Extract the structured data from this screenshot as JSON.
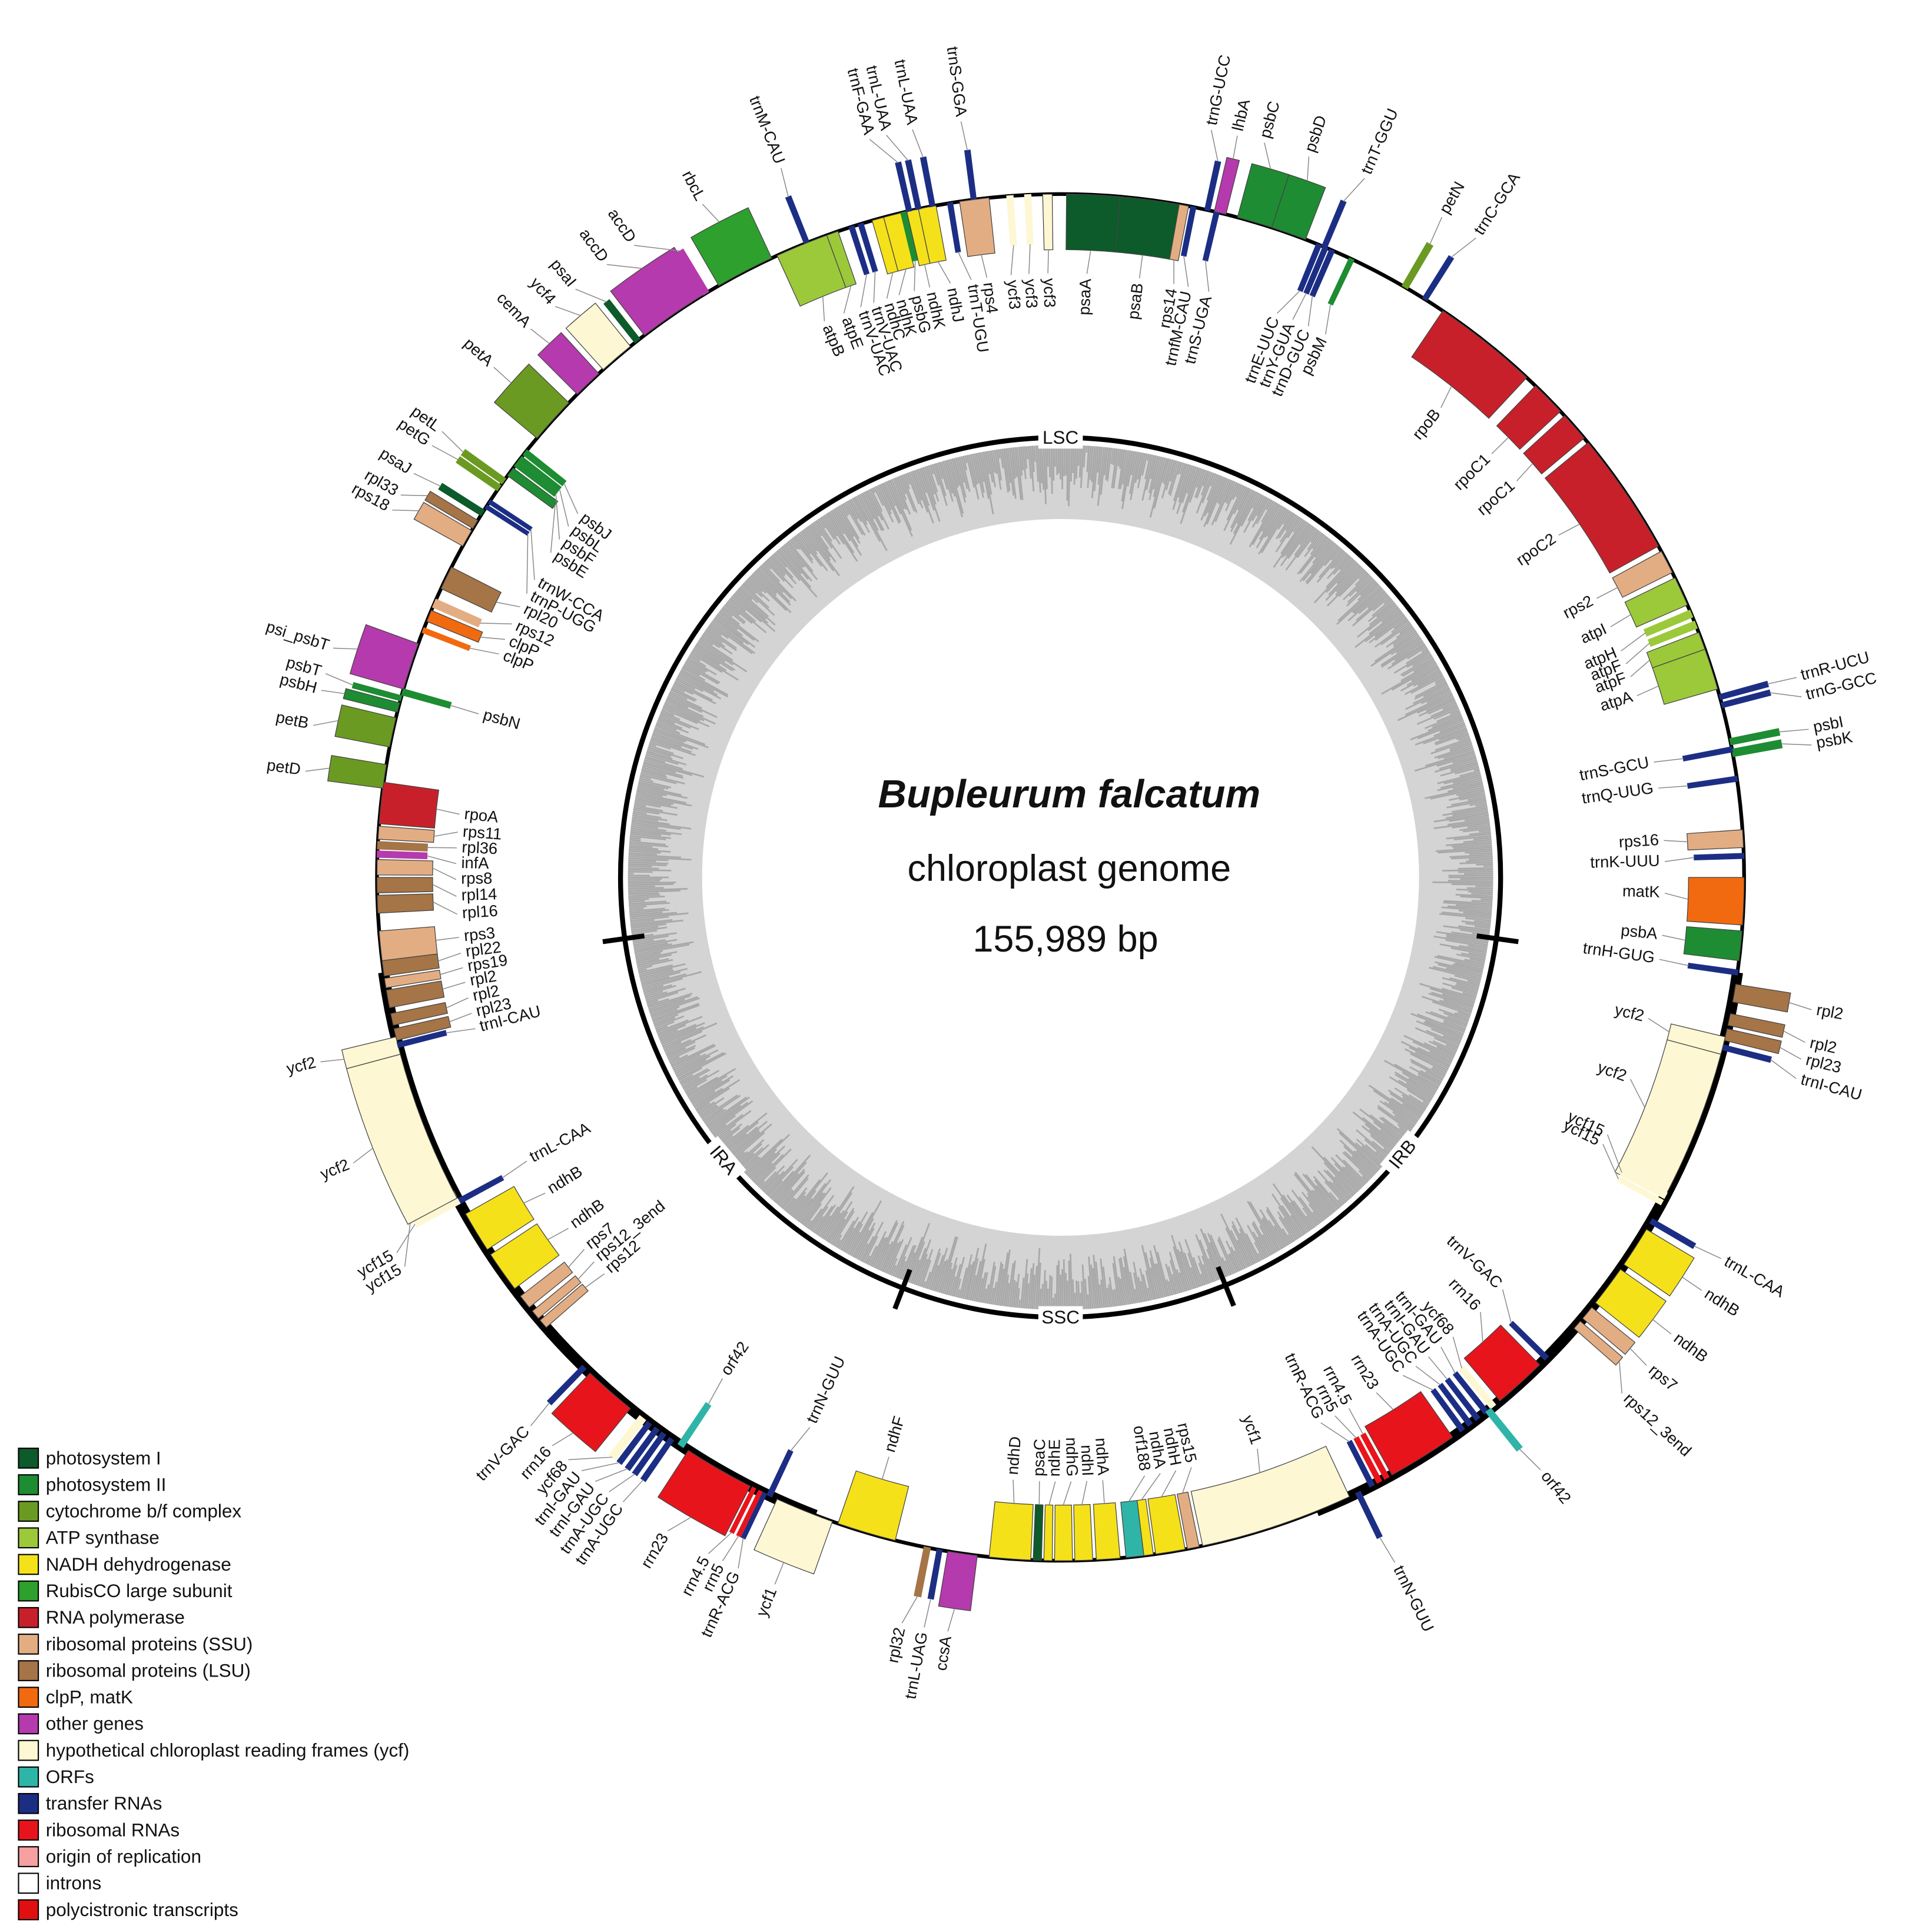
{
  "title": "Bupleurum falcatum",
  "subtitle": "chloroplast genome",
  "size": "155,989 bp",
  "regions": [
    "LSC",
    "SSC",
    "IRA",
    "IRB"
  ],
  "genes": [
    {
      "label": "psaA",
      "color": "#0d5a2a"
    },
    {
      "label": "psaB",
      "color": "#0d5a2a"
    },
    {
      "label": "rps14",
      "color": "#e3ad83"
    },
    {
      "label": "trnfM-CAU",
      "color": "#1c2e84"
    },
    {
      "label": "trnS-UGA",
      "color": "#1c2e84"
    },
    {
      "label": "trnG-UCC",
      "color": "#1c2e84"
    },
    {
      "label": "lhbA",
      "color": "#b53aad"
    },
    {
      "label": "psbC",
      "color": "#1e8c32"
    },
    {
      "label": "psbD",
      "color": "#1e8c32"
    },
    {
      "label": "trnT-GGU",
      "color": "#1c2e84"
    },
    {
      "label": "trnE-UUC",
      "color": "#1c2e84"
    },
    {
      "label": "trnY-GUA",
      "color": "#1c2e84"
    },
    {
      "label": "trnD-GUC",
      "color": "#1c2e84"
    },
    {
      "label": "psbM",
      "color": "#1e8c32"
    },
    {
      "label": "petN",
      "color": "#6b9a23"
    },
    {
      "label": "trnC-GCA",
      "color": "#1c2e84"
    },
    {
      "label": "rpoB",
      "color": "#c8202a"
    },
    {
      "label": "rpoC1",
      "color": "#c8202a"
    },
    {
      "label": "rpoC1",
      "color": "#c8202a"
    },
    {
      "label": "rpoC2",
      "color": "#c8202a"
    },
    {
      "label": "rps2",
      "color": "#e3ad83"
    },
    {
      "label": "atpI",
      "color": "#9cc93a"
    },
    {
      "label": "atpH",
      "color": "#9cc93a"
    },
    {
      "label": "atpF",
      "color": "#9cc93a"
    },
    {
      "label": "atpF",
      "color": "#9cc93a"
    },
    {
      "label": "atpA",
      "color": "#9cc93a"
    },
    {
      "label": "trnR-UCU",
      "color": "#1c2e84"
    },
    {
      "label": "trnG-GCC",
      "color": "#1c2e84"
    },
    {
      "label": "psbI",
      "color": "#1e8c32"
    },
    {
      "label": "psbK",
      "color": "#1e8c32"
    },
    {
      "label": "trnS-GCU",
      "color": "#1c2e84"
    },
    {
      "label": "trnQ-UUG",
      "color": "#1c2e84"
    },
    {
      "label": "rps16",
      "color": "#e3ad83"
    },
    {
      "label": "trnK-UUU",
      "color": "#1c2e84"
    },
    {
      "label": "matK",
      "color": "#f26a0f"
    },
    {
      "label": "psbA",
      "color": "#1e8c32"
    },
    {
      "label": "trnH-GUG",
      "color": "#1c2e84"
    },
    {
      "label": "rpl2",
      "color": "#a57447"
    },
    {
      "label": "rpl2",
      "color": "#a57447"
    },
    {
      "label": "rpl23",
      "color": "#a57447"
    },
    {
      "label": "trnI-CAU",
      "color": "#1c2e84"
    },
    {
      "label": "ycf2",
      "color": "#fdf7d3"
    },
    {
      "label": "ycf2",
      "color": "#fdf7d3"
    },
    {
      "label": "ycf15",
      "color": "#fdf7d3"
    },
    {
      "label": "ycf15",
      "color": "#fdf7d3"
    },
    {
      "label": "trnL-CAA",
      "color": "#1c2e84"
    },
    {
      "label": "ndhB",
      "color": "#f5e11a"
    },
    {
      "label": "ndhB",
      "color": "#f5e11a"
    },
    {
      "label": "rps7",
      "color": "#e3ad83"
    },
    {
      "label": "rps12_3end",
      "color": "#e3ad83"
    },
    {
      "label": "trnV-GAC",
      "color": "#1c2e84"
    },
    {
      "label": "rrn16",
      "color": "#e8141c"
    },
    {
      "label": "ycf68",
      "color": "#fdf7d3"
    },
    {
      "label": "trnI-GAU",
      "color": "#1c2e84"
    },
    {
      "label": "trnI-GAU",
      "color": "#1c2e84"
    },
    {
      "label": "trnA-UGC",
      "color": "#1c2e84"
    },
    {
      "label": "trnA-UGC",
      "color": "#1c2e84"
    },
    {
      "label": "orf42",
      "color": "#2fb5a8"
    },
    {
      "label": "rrn23",
      "color": "#e8141c"
    },
    {
      "label": "rrn4.5",
      "color": "#e8141c"
    },
    {
      "label": "rrn5",
      "color": "#e8141c"
    },
    {
      "label": "trnR-ACG",
      "color": "#1c2e84"
    },
    {
      "label": "trnN-GUU",
      "color": "#1c2e84"
    },
    {
      "label": "ycf1",
      "color": "#fdf7d3"
    },
    {
      "label": "rps15",
      "color": "#e3ad83"
    },
    {
      "label": "ndhH",
      "color": "#f5e11a"
    },
    {
      "label": "ndhA",
      "color": "#f5e11a"
    },
    {
      "label": "orf188",
      "color": "#2fb5a8"
    },
    {
      "label": "ndhA",
      "color": "#f5e11a"
    },
    {
      "label": "ndhI",
      "color": "#f5e11a"
    },
    {
      "label": "ndhG",
      "color": "#f5e11a"
    },
    {
      "label": "ndhE",
      "color": "#f5e11a"
    },
    {
      "label": "psaC",
      "color": "#0d5a2a"
    },
    {
      "label": "ndhD",
      "color": "#f5e11a"
    },
    {
      "label": "ccsA",
      "color": "#b53aad"
    },
    {
      "label": "trnL-UAG",
      "color": "#1c2e84"
    },
    {
      "label": "rpl32",
      "color": "#a57447"
    },
    {
      "label": "ndhF",
      "color": "#f5e11a"
    },
    {
      "label": "ycf1",
      "color": "#fdf7d3"
    },
    {
      "label": "trnN-GUU",
      "color": "#1c2e84"
    },
    {
      "label": "rrn23",
      "color": "#e8141c"
    },
    {
      "label": "rrn4.5",
      "color": "#e8141c"
    },
    {
      "label": "rrn5",
      "color": "#e8141c"
    },
    {
      "label": "trnR-ACG",
      "color": "#1c2e84"
    },
    {
      "label": "orf42",
      "color": "#2fb5a8"
    },
    {
      "label": "trnA-UGC",
      "color": "#1c2e84"
    },
    {
      "label": "trnA-UGC",
      "color": "#1c2e84"
    },
    {
      "label": "trnI-GAU",
      "color": "#1c2e84"
    },
    {
      "label": "trnI-GAU",
      "color": "#1c2e84"
    },
    {
      "label": "ycf68",
      "color": "#fdf7d3"
    },
    {
      "label": "rrn16",
      "color": "#e8141c"
    },
    {
      "label": "trnV-GAC",
      "color": "#1c2e84"
    },
    {
      "label": "rps12",
      "color": "#e3ad83"
    },
    {
      "label": "rps12_3end",
      "color": "#e3ad83"
    },
    {
      "label": "rps7",
      "color": "#e3ad83"
    },
    {
      "label": "ndhB",
      "color": "#f5e11a"
    },
    {
      "label": "ndhB",
      "color": "#f5e11a"
    },
    {
      "label": "trnL-CAA",
      "color": "#1c2e84"
    },
    {
      "label": "ycf15",
      "color": "#fdf7d3"
    },
    {
      "label": "ycf15",
      "color": "#fdf7d3"
    },
    {
      "label": "ycf2",
      "color": "#fdf7d3"
    },
    {
      "label": "ycf2",
      "color": "#fdf7d3"
    },
    {
      "label": "trnI-CAU",
      "color": "#1c2e84"
    },
    {
      "label": "rpl23",
      "color": "#a57447"
    },
    {
      "label": "rpl2",
      "color": "#a57447"
    },
    {
      "label": "rpl2",
      "color": "#a57447"
    },
    {
      "label": "rps19",
      "color": "#e3ad83"
    },
    {
      "label": "rpl22",
      "color": "#a57447"
    },
    {
      "label": "rps3",
      "color": "#e3ad83"
    },
    {
      "label": "rpl16",
      "color": "#a57447"
    },
    {
      "label": "rpl14",
      "color": "#a57447"
    },
    {
      "label": "rps8",
      "color": "#e3ad83"
    },
    {
      "label": "infA",
      "color": "#b53aad"
    },
    {
      "label": "rpl36",
      "color": "#a57447"
    },
    {
      "label": "rps11",
      "color": "#e3ad83"
    },
    {
      "label": "rpoA",
      "color": "#c8202a"
    },
    {
      "label": "petD",
      "color": "#6b9a23"
    },
    {
      "label": "petB",
      "color": "#6b9a23"
    },
    {
      "label": "psbH",
      "color": "#1e8c32"
    },
    {
      "label": "psbT",
      "color": "#1e8c32"
    },
    {
      "label": "psbN",
      "color": "#1e8c32"
    },
    {
      "label": "psi_psbT",
      "color": "#b53aad"
    },
    {
      "label": "clpP",
      "color": "#f26a0f"
    },
    {
      "label": "clpP",
      "color": "#f26a0f"
    },
    {
      "label": "rps12",
      "color": "#e3ad83"
    },
    {
      "label": "rpl20",
      "color": "#a57447"
    },
    {
      "label": "rps18",
      "color": "#e3ad83"
    },
    {
      "label": "rpl33",
      "color": "#a57447"
    },
    {
      "label": "psaJ",
      "color": "#0d5a2a"
    },
    {
      "label": "trnP-UGG",
      "color": "#1c2e84"
    },
    {
      "label": "trnW-CCA",
      "color": "#1c2e84"
    },
    {
      "label": "petG",
      "color": "#6b9a23"
    },
    {
      "label": "petL",
      "color": "#6b9a23"
    },
    {
      "label": "psbE",
      "color": "#1e8c32"
    },
    {
      "label": "psbF",
      "color": "#1e8c32"
    },
    {
      "label": "psbL",
      "color": "#1e8c32"
    },
    {
      "label": "psbJ",
      "color": "#1e8c32"
    },
    {
      "label": "petA",
      "color": "#6b9a23"
    },
    {
      "label": "cemA",
      "color": "#b53aad"
    },
    {
      "label": "ycf4",
      "color": "#fdf7d3"
    },
    {
      "label": "psaI",
      "color": "#0d5a2a"
    },
    {
      "label": "accD",
      "color": "#b53aad"
    },
    {
      "label": "accD",
      "color": "#b53aad"
    },
    {
      "label": "rbcL",
      "color": "#2ea02e"
    },
    {
      "label": "trnM-CAU",
      "color": "#1c2e84"
    },
    {
      "label": "atpB",
      "color": "#9cc93a"
    },
    {
      "label": "atpE",
      "color": "#9cc93a"
    },
    {
      "label": "trnV-UAC",
      "color": "#1c2e84"
    },
    {
      "label": "trnV-UAC",
      "color": "#1c2e84"
    },
    {
      "label": "ndhC",
      "color": "#f5e11a"
    },
    {
      "label": "ndhK",
      "color": "#f5e11a"
    },
    {
      "label": "psbG",
      "color": "#1e8c32"
    },
    {
      "label": "ndhK",
      "color": "#f5e11a"
    },
    {
      "label": "ndhJ",
      "color": "#f5e11a"
    },
    {
      "label": "trnF-GAA",
      "color": "#1c2e84"
    },
    {
      "label": "trnL-UAA",
      "color": "#1c2e84"
    },
    {
      "label": "trnL-UAA",
      "color": "#1c2e84"
    },
    {
      "label": "trnT-UGU",
      "color": "#1c2e84"
    },
    {
      "label": "trnS-GGA",
      "color": "#1c2e84"
    },
    {
      "label": "rps4",
      "color": "#e3ad83"
    },
    {
      "label": "ycf3",
      "color": "#fdf7d3"
    },
    {
      "label": "ycf3",
      "color": "#fdf7d3"
    },
    {
      "label": "ycf3",
      "color": "#fdf7d3"
    }
  ],
  "legend": [
    {
      "label": "photosystem I",
      "color": "#0d5a2a"
    },
    {
      "label": "photosystem II",
      "color": "#1e8c32"
    },
    {
      "label": "cytochrome b/f complex",
      "color": "#6b9a23"
    },
    {
      "label": "ATP synthase",
      "color": "#9cc93a"
    },
    {
      "label": "NADH dehydrogenase",
      "color": "#f5e11a"
    },
    {
      "label": "RubisCO large subunit",
      "color": "#2ea02e"
    },
    {
      "label": "RNA polymerase",
      "color": "#c8202a"
    },
    {
      "label": "ribosomal proteins (SSU)",
      "color": "#e3ad83"
    },
    {
      "label": "ribosomal proteins (LSU)",
      "color": "#a57447"
    },
    {
      "label": "clpP, matK",
      "color": "#f26a0f"
    },
    {
      "label": "other genes",
      "color": "#b53aad"
    },
    {
      "label": "hypothetical chloroplast reading frames (ycf)",
      "color": "#fdf7d3"
    },
    {
      "label": "ORFs",
      "color": "#2fb5a8"
    },
    {
      "label": "transfer RNAs",
      "color": "#1c2e84"
    },
    {
      "label": "ribosomal RNAs",
      "color": "#e8141c"
    },
    {
      "label": "origin of replication",
      "color": "#f6a0a0"
    },
    {
      "label": "introns",
      "color": "#ffffff"
    },
    {
      "label": "polycistronic transcripts",
      "color": "#e01010"
    }
  ]
}
